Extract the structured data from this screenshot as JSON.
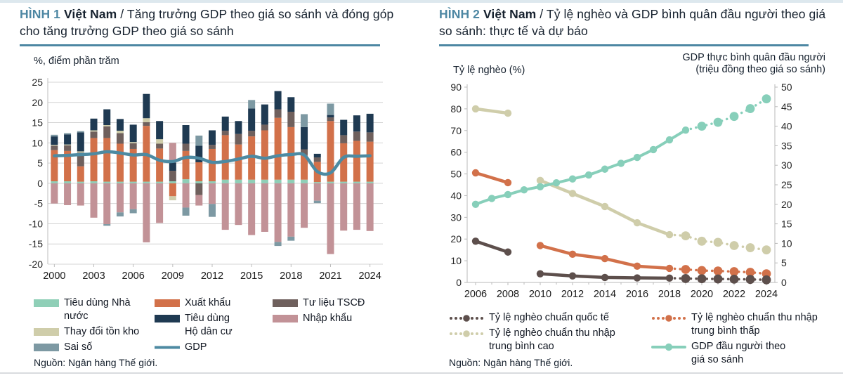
{
  "fig1": {
    "tag": "HÌNH 1",
    "country": "Việt Nam",
    "title_rest": "/ Tăng trưởng GDP theo giá so sánh và đóng góp cho tăng trưởng GDP theo giá so sánh",
    "axis_note": "%, điểm phần trăm",
    "source": "Nguồn: Ngân hàng Thế giới.",
    "legend_columns": [
      [
        {
          "label": "Tiêu dùng Nhà nước",
          "color": "#8fcfb7",
          "type": "rect"
        },
        {
          "label": "Thay đổi tồn kho",
          "color": "#cfcdaa",
          "type": "rect"
        },
        {
          "label": "Sai số",
          "color": "#7d99a3",
          "type": "rect"
        }
      ],
      [
        {
          "label": "Xuất khẩu",
          "color": "#d2714a",
          "type": "rect"
        },
        {
          "label": "Tiêu dùng\nHộ dân cư",
          "color": "#1f3a52",
          "type": "rect"
        },
        {
          "label": "GDP",
          "color": "#4d8aa2",
          "type": "line"
        }
      ],
      [
        {
          "label": "Tư liệu TSCĐ",
          "color": "#6f605d",
          "type": "rect"
        },
        {
          "label": "Nhập khẩu",
          "color": "#c29297",
          "type": "rect"
        }
      ]
    ]
  },
  "fig2": {
    "tag": "HÌNH 2",
    "country": "Việt Nam",
    "title_rest": "/ Tỷ lệ nghèo và GDP bình quân đầu người theo giá so sánh: thực tế và dự báo",
    "axis_note_left": "Tỷ lệ nghèo (%)",
    "axis_note_right": "GDP thực bình quân đầu người\n(triệu đồng theo giá so sánh)",
    "source": "Nguồn: Ngân hàng Thế giới.",
    "legend_columns": [
      [
        {
          "label": "Tỷ lệ nghèo chuẩn quốc tế",
          "color": "#5d4f4c",
          "type": "dots"
        },
        {
          "label": "Tỷ lệ nghèo chuẩn thu nhập\ntrung bình cao",
          "color": "#cfcdaa",
          "type": "dots"
        }
      ],
      [
        {
          "label": "Tỷ lệ nghèo chuẩn thu nhập\ntrung bình thấp",
          "color": "#d2714a",
          "type": "dots"
        },
        {
          "label": "GDP đầu người theo\ngiá so sánh",
          "color": "#87cfba",
          "type": "linedot"
        }
      ]
    ]
  },
  "chart_data": [
    {
      "type": "bar",
      "title": "HÌNH 1 Việt Nam / Tăng trưởng GDP theo giá so sánh và đóng góp cho tăng trưởng GDP theo giá so sánh",
      "ylabel": "%, điểm phần trăm",
      "ylim": [
        -20,
        25
      ],
      "ytick_step": 5,
      "grid": true,
      "categories": [
        2000,
        2001,
        2002,
        2003,
        2004,
        2005,
        2006,
        2007,
        2008,
        2009,
        2010,
        2011,
        2012,
        2013,
        2014,
        2015,
        2016,
        2017,
        2018,
        2019,
        2020,
        2021,
        2022,
        2023,
        2024
      ],
      "xtick_labels": [
        "2000",
        "2003",
        "2006",
        "2009",
        "2012",
        "2015",
        "2018",
        "2021",
        "2024"
      ],
      "series": [
        {
          "name": "Tiêu dùng Nhà nước",
          "color": "#8fcfb7",
          "values": [
            0.5,
            0.5,
            0.4,
            0.5,
            0.4,
            0.4,
            0.4,
            0.4,
            0.4,
            0.5,
            1.0,
            0.5,
            0.5,
            0.9,
            0.9,
            0.9,
            0.9,
            0.9,
            0.9,
            0.9,
            0.3,
            0.4,
            0.4,
            0.4,
            0.4
          ]
        },
        {
          "name": "Xuất khẩu",
          "color": "#d2714a",
          "values": [
            7.7,
            7.5,
            3.8,
            10.7,
            10.8,
            9.4,
            8.1,
            13.8,
            8.2,
            -3.2,
            7.0,
            4.7,
            8.0,
            11.0,
            8.7,
            10.7,
            12.2,
            15.3,
            13.0,
            6.1,
            5.0,
            15.0,
            9.5,
            10.1,
            9.9
          ]
        },
        {
          "name": "Tư liệu TSCĐ",
          "color": "#6f605d",
          "values": [
            1.1,
            1.4,
            3.4,
            1.6,
            2.9,
            2.6,
            1.4,
            0.9,
            1.2,
            2.6,
            1.8,
            -2.9,
            1.0,
            1.1,
            2.6,
            1.4,
            1.4,
            2.1,
            3.8,
            1.4,
            1.1,
            0.9,
            2.0,
            2.3,
            2.3
          ]
        },
        {
          "name": "Thay đổi tồn kho",
          "color": "#cfcdaa",
          "values": [
            0.2,
            0.2,
            0.3,
            0.3,
            0.3,
            0.6,
            0.3,
            1.0,
            1.1,
            -1.0,
            0,
            0,
            0,
            0,
            0,
            0,
            0,
            0,
            0,
            0,
            0,
            0,
            0,
            0,
            0
          ]
        },
        {
          "name": "Tiêu dùng Hộ dân cư",
          "color": "#1f3a52",
          "values": [
            2.1,
            2.5,
            4.7,
            2.9,
            3.9,
            2.9,
            4.3,
            6.0,
            4.5,
            2.0,
            4.6,
            4.1,
            3.6,
            3.5,
            3.2,
            5.5,
            5.0,
            4.5,
            3.6,
            5.5,
            0.9,
            0.6,
            3.8,
            4.0,
            4.6
          ]
        },
        {
          "name": "Nhập khẩu",
          "color": "#c29297",
          "values": [
            -5.0,
            -5.4,
            -5.5,
            -8.5,
            -10.1,
            -7.2,
            -6.4,
            -14.6,
            -9.8,
            4.9,
            -6.0,
            -2.6,
            -5.1,
            -11.5,
            -10.3,
            -12.8,
            -12.0,
            -14.5,
            -13.2,
            -11.0,
            -4.3,
            -17.5,
            -11.7,
            -11.5,
            -11.8
          ]
        },
        {
          "name": "Sai số",
          "color": "#7d99a3",
          "values": [
            0.4,
            0.3,
            0.3,
            0,
            -0.4,
            -1.0,
            -1.0,
            0,
            0,
            0,
            -2.0,
            2.5,
            -3.2,
            0,
            0,
            2.1,
            0,
            -1.0,
            -1.0,
            3.2,
            -0.6,
            2.8,
            0,
            0,
            0
          ]
        }
      ],
      "line_series": {
        "name": "GDP",
        "color": "#4d8aa2",
        "values": [
          6.8,
          6.9,
          7.1,
          7.3,
          7.8,
          7.5,
          7.0,
          7.1,
          5.7,
          5.4,
          6.4,
          6.2,
          5.2,
          5.4,
          6.0,
          6.7,
          6.2,
          6.8,
          7.1,
          7.0,
          2.9,
          2.6,
          6.4,
          6.7,
          6.8
        ]
      }
    },
    {
      "type": "line",
      "title": "HÌNH 2 Việt Nam / Tỷ lệ nghèo và GDP bình quân đầu người theo giá so sánh: thực tế và dự báo",
      "ylabel_left": "Tỷ lệ nghèo (%)",
      "ylabel_right": "GDP thực bình quân đầu người (triệu đồng theo giá so sánh)",
      "ylim_left": [
        0,
        90
      ],
      "ytick_step_left": 10,
      "ylim_right": [
        0,
        50
      ],
      "ytick_step_right": 5,
      "grid": false,
      "xlim": [
        2006,
        2024
      ],
      "xtick_labels": [
        "2006",
        "2008",
        "2010",
        "2012",
        "2014",
        "2016",
        "2018",
        "2020",
        "2022",
        "2024"
      ],
      "series": [
        {
          "name": "Tỷ lệ nghèo chuẩn thu nhập trung bình cao",
          "color": "#cfcdaa",
          "axis": "left",
          "solid": [
            [
              [
                2006,
                80
              ],
              [
                2008,
                78
              ]
            ],
            [
              [
                2010,
                47
              ],
              [
                2012,
                41
              ],
              [
                2014,
                35
              ],
              [
                2016,
                27.5
              ],
              [
                2018,
                22
              ]
            ]
          ],
          "forecast": [
            [
              2019,
              21.5
            ],
            [
              2020,
              19
            ],
            [
              2021,
              18.5
            ],
            [
              2022,
              17
            ],
            [
              2023,
              16
            ],
            [
              2024,
              15
            ]
          ]
        },
        {
          "name": "Tỷ lệ nghèo chuẩn thu nhập trung bình thấp",
          "color": "#d2714a",
          "axis": "left",
          "solid": [
            [
              [
                2006,
                50.5
              ],
              [
                2008,
                46
              ]
            ],
            [
              [
                2010,
                17
              ],
              [
                2012,
                13
              ],
              [
                2014,
                11
              ],
              [
                2016,
                7.5
              ],
              [
                2018,
                6.5
              ]
            ]
          ],
          "forecast": [
            [
              2019,
              6
            ],
            [
              2020,
              5.5
            ],
            [
              2021,
              5.3
            ],
            [
              2022,
              5
            ],
            [
              2023,
              4.7
            ],
            [
              2024,
              4
            ]
          ]
        },
        {
          "name": "Tỷ lệ nghèo chuẩn quốc tế",
          "color": "#5d4f4c",
          "axis": "left",
          "solid": [
            [
              [
                2006,
                19
              ],
              [
                2008,
                14
              ]
            ],
            [
              [
                2010,
                4
              ],
              [
                2012,
                3
              ],
              [
                2014,
                2.3
              ],
              [
                2016,
                2.1
              ],
              [
                2018,
                2
              ]
            ]
          ],
          "forecast": [
            [
              2019,
              1.8
            ],
            [
              2020,
              1.7
            ],
            [
              2021,
              1.6
            ],
            [
              2022,
              1.5
            ],
            [
              2023,
              1.4
            ],
            [
              2024,
              1.2
            ]
          ]
        },
        {
          "name": "GDP đầu người theo giá so sánh",
          "color": "#87cfba",
          "axis": "right",
          "solid": [
            [
              [
                2006,
                20
              ],
              [
                2007,
                21.5
              ],
              [
                2008,
                22.5
              ],
              [
                2009,
                23.7
              ],
              [
                2010,
                24.5
              ],
              [
                2011,
                25.5
              ],
              [
                2012,
                26.5
              ],
              [
                2013,
                27.5
              ],
              [
                2014,
                29
              ],
              [
                2015,
                30.5
              ],
              [
                2016,
                32
              ],
              [
                2017,
                34
              ],
              [
                2018,
                36.5
              ],
              [
                2019,
                39
              ]
            ]
          ],
          "forecast": [
            [
              2020,
              40
            ],
            [
              2021,
              41
            ],
            [
              2022,
              42.5
            ],
            [
              2023,
              44.5
            ],
            [
              2024,
              47
            ]
          ]
        }
      ]
    }
  ]
}
